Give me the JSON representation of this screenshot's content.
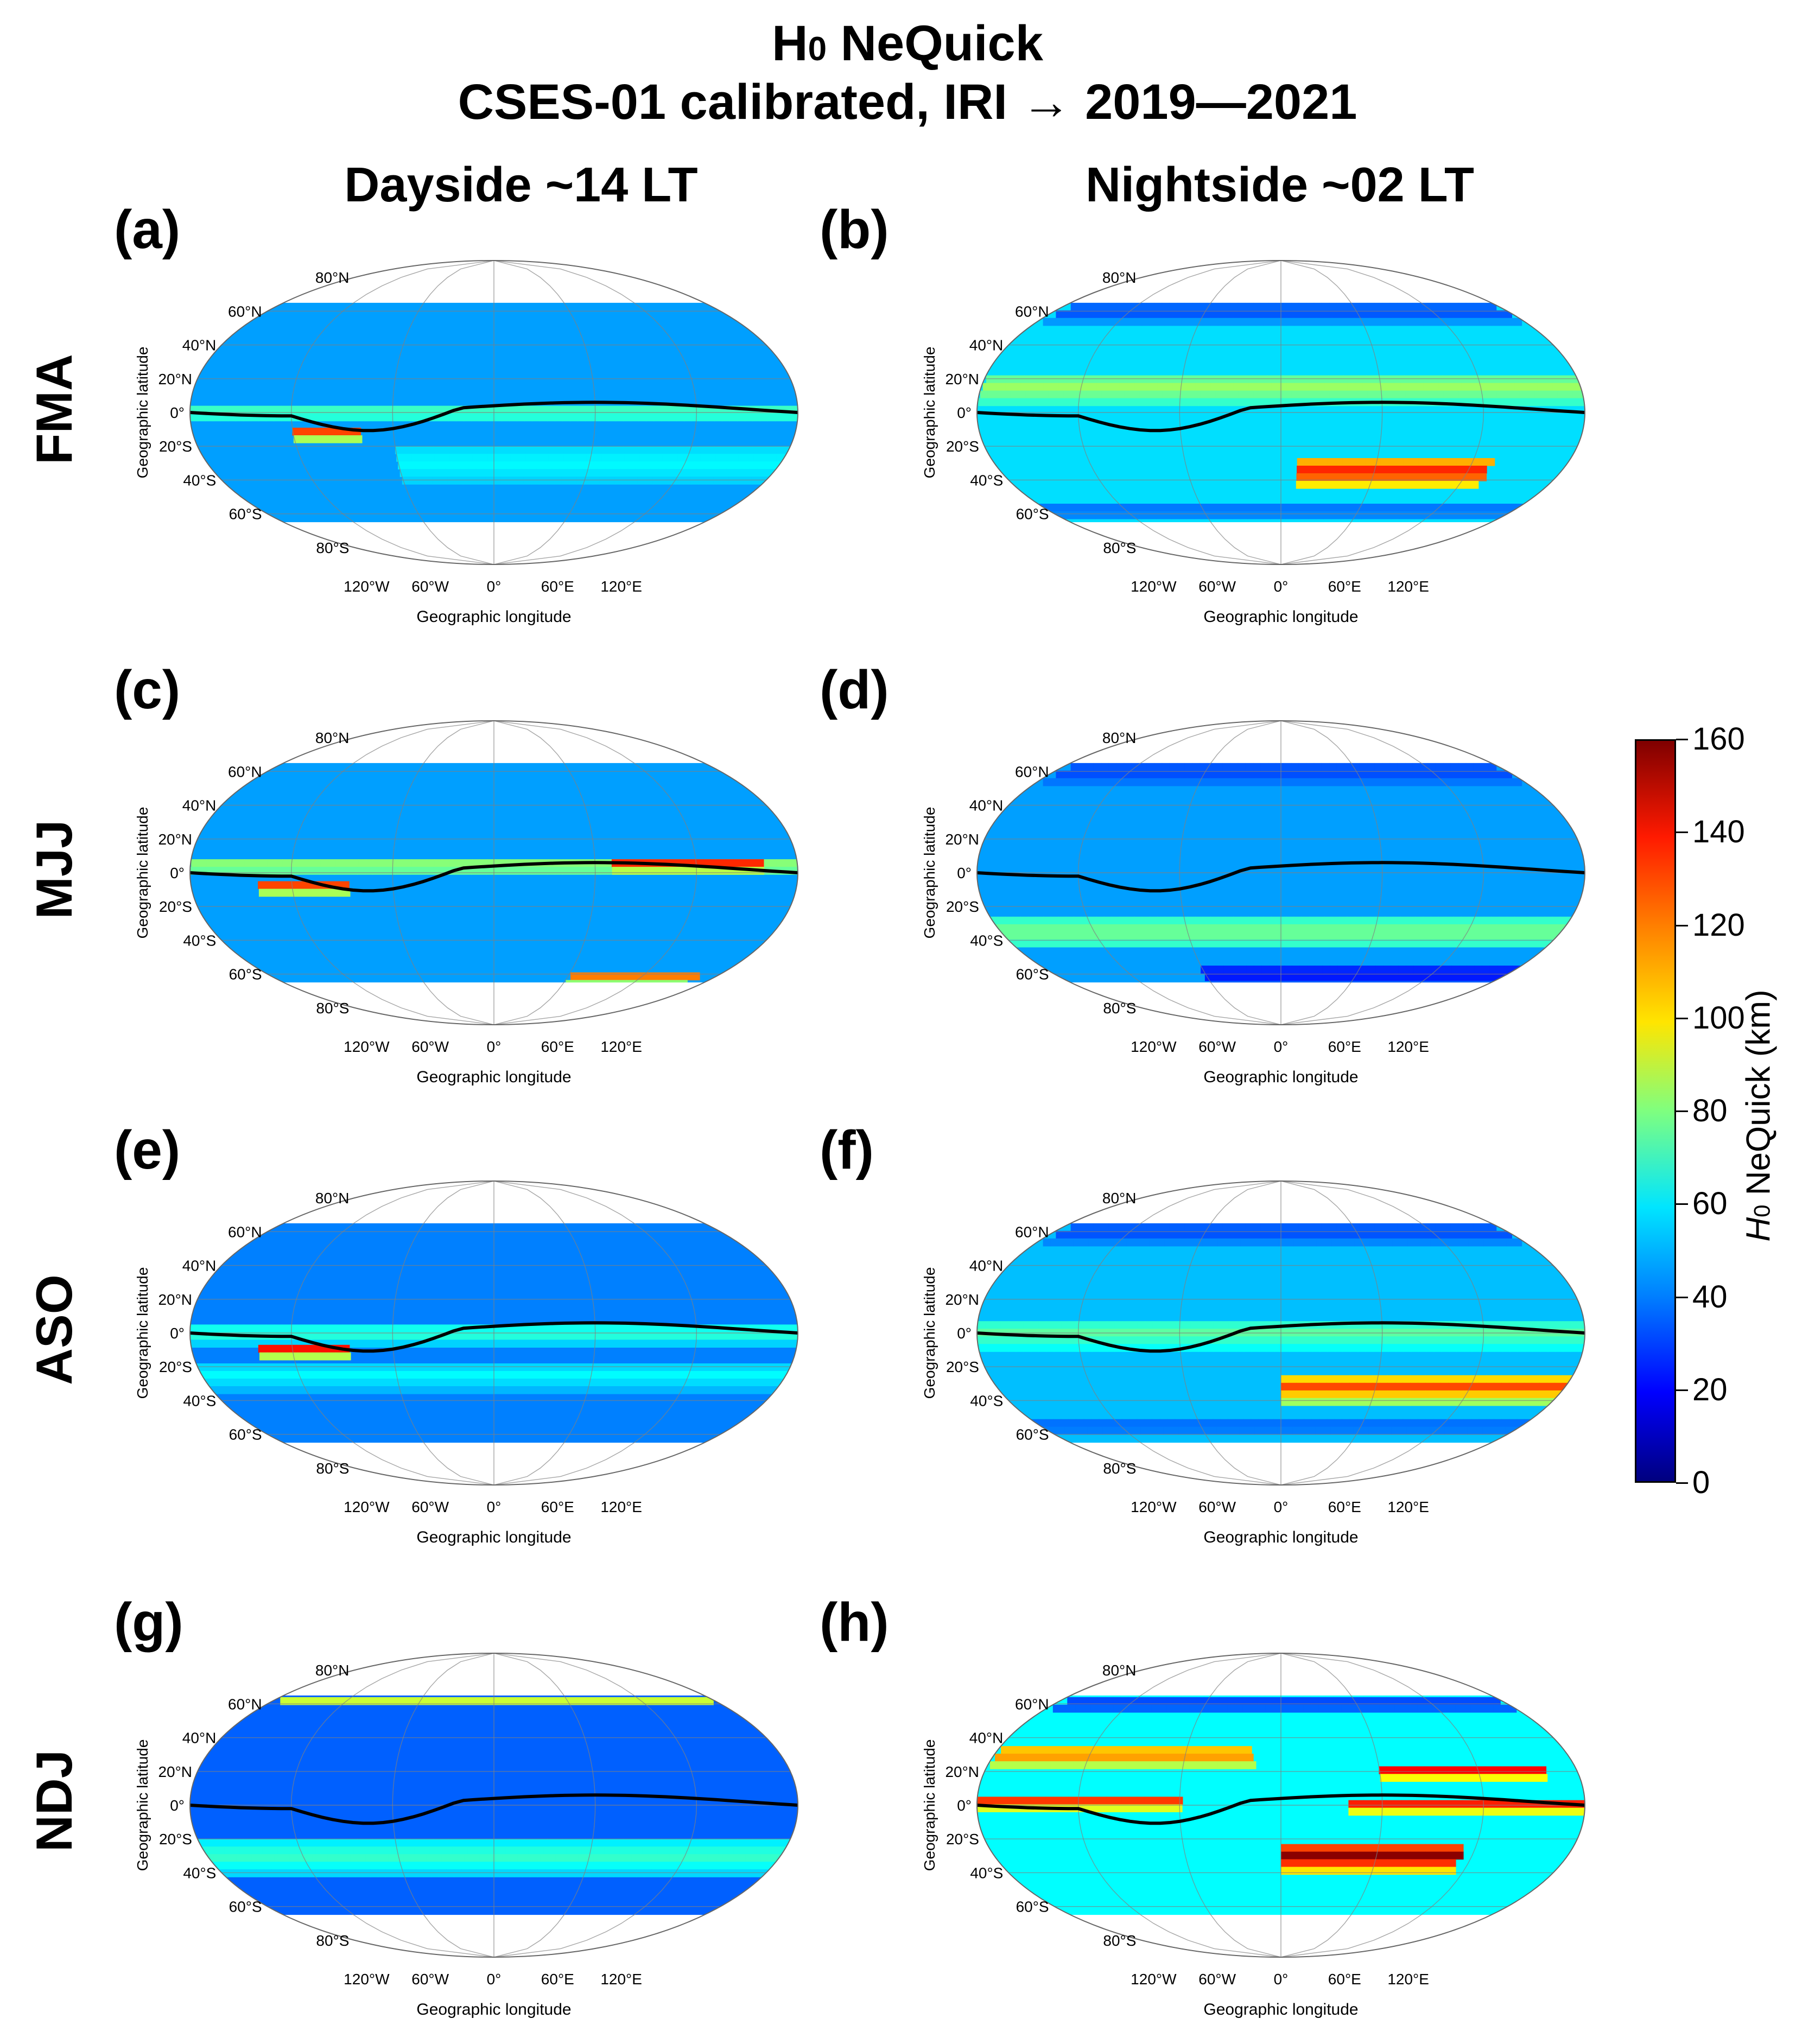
{
  "figure": {
    "title_prefix": "H",
    "title_sub": "0",
    "title_suffix": " NeQuick",
    "subtitle": "CSES-01 calibrated, IRI → 2019—2021",
    "columns": [
      "Dayside ~14 LT",
      "Nightside ~02 LT"
    ],
    "rows": [
      "FMA",
      "MJJ",
      "ASO",
      "NDJ"
    ]
  },
  "chart_data": [
    {
      "type": "heatmap",
      "panel": "(a)",
      "season": "FMA",
      "column": "Dayside ~14 LT",
      "xlabel": "Geographic longitude",
      "ylabel": "Geographic latitude",
      "xticks": [
        "120°W",
        "60°W",
        "0°",
        "60°E",
        "120°E"
      ],
      "yticks": [
        "80°N",
        "60°N",
        "40°N",
        "20°N",
        "0°",
        "20°S",
        "40°S",
        "60°S",
        "80°S"
      ],
      "background_km": 45,
      "bands": [
        {
          "lat": 0,
          "lon_from": -180,
          "lon_to": 180,
          "km": 75,
          "width_deg": 8
        },
        {
          "lat": -12,
          "lon_from": -120,
          "lon_to": -80,
          "km": 140,
          "width_deg": 6
        },
        {
          "lat": -30,
          "lon_from": -60,
          "lon_to": 180,
          "km": 60,
          "width_deg": 20
        }
      ]
    },
    {
      "type": "heatmap",
      "panel": "(b)",
      "season": "FMA",
      "column": "Nightside ~02 LT",
      "xlabel": "Geographic longitude",
      "ylabel": "Geographic latitude",
      "xticks": [
        "120°W",
        "60°W",
        "0°",
        "60°E",
        "120°E"
      ],
      "yticks": [
        "80°N",
        "60°N",
        "40°N",
        "20°N",
        "0°",
        "20°S",
        "40°S",
        "60°S",
        "80°S"
      ],
      "background_km": 55,
      "bands": [
        {
          "lat": 15,
          "lon_from": -180,
          "lon_to": 180,
          "km": 85,
          "width_deg": 14
        },
        {
          "lat": -35,
          "lon_from": 10,
          "lon_to": 130,
          "km": 140,
          "width_deg": 16
        },
        {
          "lat": 60,
          "lon_from": -180,
          "lon_to": 180,
          "km": 30,
          "width_deg": 10
        },
        {
          "lat": -58,
          "lon_from": -180,
          "lon_to": 180,
          "km": 35,
          "width_deg": 8
        }
      ]
    },
    {
      "type": "heatmap",
      "panel": "(c)",
      "season": "MJJ",
      "column": "Dayside ~14 LT",
      "xlabel": "Geographic longitude",
      "ylabel": "Geographic latitude",
      "xticks": [
        "120°W",
        "60°W",
        "0°",
        "60°E",
        "120°E"
      ],
      "yticks": [
        "80°N",
        "60°N",
        "40°N",
        "20°N",
        "0°",
        "20°S",
        "40°S",
        "60°S",
        "80°S"
      ],
      "background_km": 45,
      "bands": [
        {
          "lat": 4,
          "lon_from": -180,
          "lon_to": 180,
          "km": 90,
          "width_deg": 8
        },
        {
          "lat": -8,
          "lon_from": -140,
          "lon_to": -90,
          "km": 140,
          "width_deg": 6
        },
        {
          "lat": 5,
          "lon_from": 70,
          "lon_to": 160,
          "km": 145,
          "width_deg": 6
        },
        {
          "lat": -62,
          "lon_from": 60,
          "lon_to": 160,
          "km": 130,
          "width_deg": 6
        }
      ]
    },
    {
      "type": "heatmap",
      "panel": "(d)",
      "season": "MJJ",
      "column": "Nightside ~02 LT",
      "xlabel": "Geographic longitude",
      "ylabel": "Geographic latitude",
      "xticks": [
        "120°W",
        "60°W",
        "0°",
        "60°E",
        "120°E"
      ],
      "yticks": [
        "80°N",
        "60°N",
        "40°N",
        "20°N",
        "0°",
        "20°S",
        "40°S",
        "60°S",
        "80°S"
      ],
      "background_km": 45,
      "bands": [
        {
          "lat": -35,
          "lon_from": -180,
          "lon_to": 180,
          "km": 80,
          "width_deg": 18
        },
        {
          "lat": -60,
          "lon_from": -60,
          "lon_to": 180,
          "km": 20,
          "width_deg": 10
        },
        {
          "lat": 60,
          "lon_from": -180,
          "lon_to": 180,
          "km": 30,
          "width_deg": 10
        }
      ]
    },
    {
      "type": "heatmap",
      "panel": "(e)",
      "season": "ASO",
      "column": "Dayside ~14 LT",
      "xlabel": "Geographic longitude",
      "ylabel": "Geographic latitude",
      "xticks": [
        "120°W",
        "60°W",
        "0°",
        "60°E",
        "120°E"
      ],
      "yticks": [
        "80°N",
        "60°N",
        "40°N",
        "20°N",
        "0°",
        "20°S",
        "40°S",
        "60°S",
        "80°S"
      ],
      "background_km": 40,
      "bands": [
        {
          "lat": 0,
          "lon_from": -180,
          "lon_to": 180,
          "km": 70,
          "width_deg": 10
        },
        {
          "lat": -10,
          "lon_from": -140,
          "lon_to": -90,
          "km": 150,
          "width_deg": 6
        },
        {
          "lat": -25,
          "lon_from": -180,
          "lon_to": 180,
          "km": 60,
          "width_deg": 14
        }
      ]
    },
    {
      "type": "heatmap",
      "panel": "(f)",
      "season": "ASO",
      "column": "Nightside ~02 LT",
      "xlabel": "Geographic longitude",
      "ylabel": "Geographic latitude",
      "xticks": [
        "120°W",
        "60°W",
        "0°",
        "60°E",
        "120°E"
      ],
      "yticks": [
        "80°N",
        "60°N",
        "40°N",
        "20°N",
        "0°",
        "20°S",
        "40°S",
        "60°S",
        "80°S"
      ],
      "background_km": 50,
      "bands": [
        {
          "lat": 0,
          "lon_from": -180,
          "lon_to": 180,
          "km": 75,
          "width_deg": 14
        },
        {
          "lat": -32,
          "lon_from": 0,
          "lon_to": 180,
          "km": 130,
          "width_deg": 14
        },
        {
          "lat": 60,
          "lon_from": -180,
          "lon_to": 180,
          "km": 30,
          "width_deg": 10
        },
        {
          "lat": -55,
          "lon_from": -180,
          "lon_to": 180,
          "km": 35,
          "width_deg": 8
        }
      ]
    },
    {
      "type": "heatmap",
      "panel": "(g)",
      "season": "NDJ",
      "column": "Dayside ~14 LT",
      "xlabel": "Geographic longitude",
      "ylabel": "Geographic latitude",
      "xticks": [
        "120°W",
        "60°W",
        "0°",
        "60°E",
        "120°E"
      ],
      "yticks": [
        "80°N",
        "60°N",
        "40°N",
        "20°N",
        "0°",
        "20°S",
        "40°S",
        "60°S",
        "80°S"
      ],
      "background_km": 35,
      "bands": [
        {
          "lat": -30,
          "lon_from": -180,
          "lon_to": 180,
          "km": 70,
          "width_deg": 20
        },
        {
          "lat": 62,
          "lon_from": -180,
          "lon_to": 180,
          "km": 95,
          "width_deg": 4
        }
      ]
    },
    {
      "type": "heatmap",
      "panel": "(h)",
      "season": "NDJ",
      "column": "Nightside ~02 LT",
      "xlabel": "Geographic longitude",
      "ylabel": "Geographic latitude",
      "xticks": [
        "120°W",
        "60°W",
        "0°",
        "60°E",
        "120°E"
      ],
      "yticks": [
        "80°N",
        "60°N",
        "40°N",
        "20°N",
        "0°",
        "20°S",
        "40°S",
        "60°S",
        "80°S"
      ],
      "background_km": 60,
      "bands": [
        {
          "lat": 30,
          "lon_from": -180,
          "lon_to": -20,
          "km": 125,
          "width_deg": 10
        },
        {
          "lat": 2,
          "lon_from": -180,
          "lon_to": -60,
          "km": 140,
          "width_deg": 6
        },
        {
          "lat": 0,
          "lon_from": 40,
          "lon_to": 180,
          "km": 145,
          "width_deg": 6
        },
        {
          "lat": 20,
          "lon_from": 60,
          "lon_to": 160,
          "km": 150,
          "width_deg": 6
        },
        {
          "lat": -30,
          "lon_from": 0,
          "lon_to": 110,
          "km": 160,
          "width_deg": 14
        },
        {
          "lat": 60,
          "lon_from": -180,
          "lon_to": 180,
          "km": 25,
          "width_deg": 8
        }
      ]
    }
  ],
  "colorbar": {
    "label_prefix": "H",
    "label_sub": "0",
    "label_suffix": " NeQuick (km)",
    "ticks": [
      "160",
      "140",
      "120",
      "100",
      "80",
      "60",
      "40",
      "20",
      "0"
    ],
    "min": 0,
    "max": 160
  },
  "colors": {
    "line": "#000000",
    "grid": "#808080"
  }
}
